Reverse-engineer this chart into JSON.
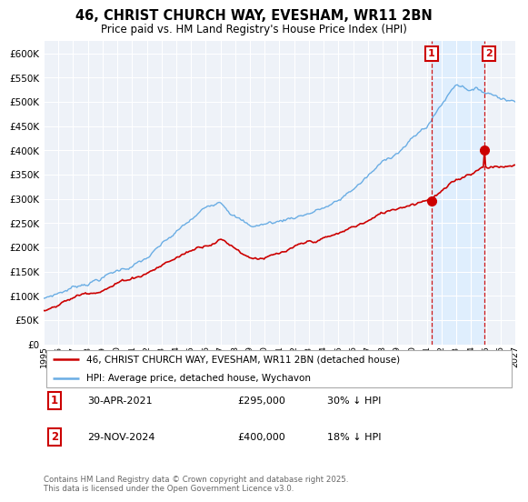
{
  "title": "46, CHRIST CHURCH WAY, EVESHAM, WR11 2BN",
  "subtitle": "Price paid vs. HM Land Registry's House Price Index (HPI)",
  "legend_line1": "46, CHRIST CHURCH WAY, EVESHAM, WR11 2BN (detached house)",
  "legend_line2": "HPI: Average price, detached house, Wychavon",
  "footer": "Contains HM Land Registry data © Crown copyright and database right 2025.\nThis data is licensed under the Open Government Licence v3.0.",
  "annotation1_label": "1",
  "annotation1_date": "30-APR-2021",
  "annotation1_price": "£295,000",
  "annotation1_hpi": "30% ↓ HPI",
  "annotation2_label": "2",
  "annotation2_date": "29-NOV-2024",
  "annotation2_price": "£400,000",
  "annotation2_hpi": "18% ↓ HPI",
  "hpi_color": "#6aade4",
  "price_color": "#cc0000",
  "annotation_box_color": "#cc0000",
  "vline_color": "#cc0000",
  "shade_color": "#ddeeff",
  "background_chart": "#eef2f8",
  "grid_color": "#ffffff",
  "ylim": [
    0,
    625000
  ],
  "yticks": [
    0,
    50000,
    100000,
    150000,
    200000,
    250000,
    300000,
    350000,
    400000,
    450000,
    500000,
    550000,
    600000
  ],
  "year_start": 1995,
  "year_end": 2027,
  "ann1_t": 2021.33,
  "ann1_price": 295000,
  "ann2_t": 2024.92,
  "ann2_price": 400000
}
